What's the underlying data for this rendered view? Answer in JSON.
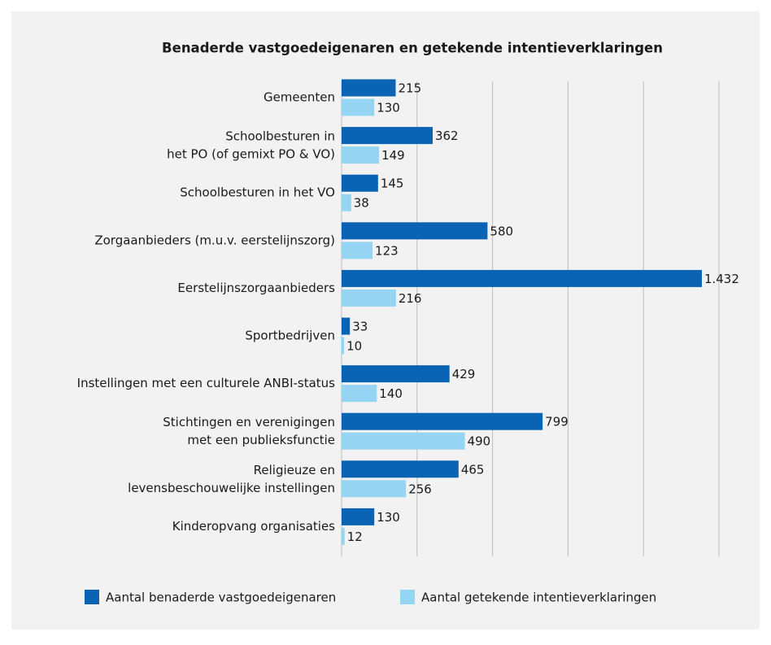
{
  "chart_data": {
    "type": "bar",
    "orientation": "horizontal",
    "title": "Benaderde vastgoedeigenaren en getekende intentieverklaringen",
    "categories": [
      "Gemeenten",
      "Schoolbesturen in\nhet PO (of gemixt PO & VO)",
      "Schoolbesturen in het VO",
      "Zorgaanbieders (m.u.v. eerstelijnszorg)",
      "Eerstelijnszorgaanbieders",
      "Sportbedrijven",
      "Instellingen met een culturele ANBI-status",
      "Stichtingen en verenigingen\nmet een publieksfunctie",
      "Religieuze en\nlevensbeschouwelijke instellingen",
      "Kinderopvang organisaties"
    ],
    "series": [
      {
        "name": "Aantal benaderde vastgoedeigenaren",
        "color": "#0b63b3",
        "values": [
          215,
          362,
          145,
          580,
          1432,
          33,
          429,
          799,
          465,
          130
        ],
        "value_labels": [
          "215",
          "362",
          "145",
          "580",
          "1.432",
          "33",
          "429",
          "799",
          "465",
          "130"
        ]
      },
      {
        "name": "Aantal getekende intentieverklaringen",
        "color": "#96d4f4",
        "values": [
          130,
          149,
          38,
          123,
          216,
          10,
          140,
          490,
          256,
          12
        ]
      }
    ],
    "xlim": [
      0,
      1500
    ],
    "xticks": [
      0,
      300,
      600,
      900,
      1200,
      1500
    ],
    "grid": true,
    "legend": "bottom"
  }
}
